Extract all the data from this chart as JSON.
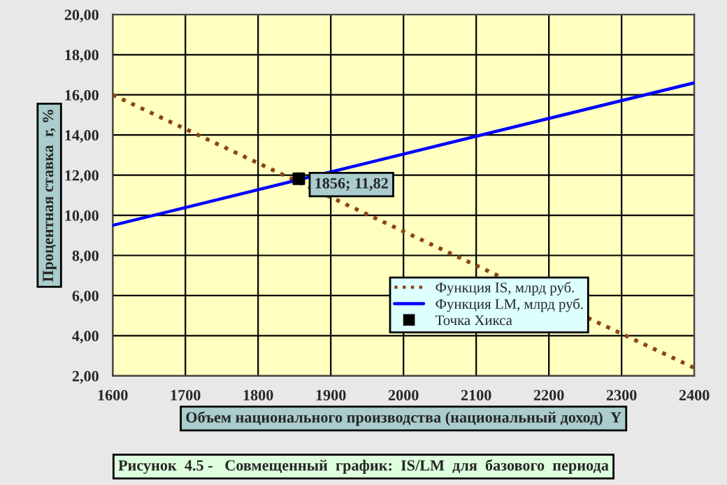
{
  "chart_data": {
    "type": "line",
    "xlabel": "Объем национального производства (национальный доход)  Y",
    "ylabel": "Процентная ставка  r, %",
    "series": [
      {
        "name": "Функция IS, млрд руб.",
        "color": "#8b4513",
        "line_style": "dotted",
        "x": [
          1600,
          2400
        ],
        "values": [
          16.0,
          2.4
        ]
      },
      {
        "name": "Функция LM, млрд руб.",
        "color": "#0000ff",
        "line_style": "solid",
        "x": [
          1600,
          2400
        ],
        "values": [
          9.5,
          16.6
        ]
      },
      {
        "name": "Точка Хикса",
        "type": "scatter",
        "color": "#000000",
        "marker": "square",
        "x": [
          1856
        ],
        "values": [
          11.82
        ]
      }
    ],
    "annotations": [
      {
        "text": "1856; 11,82",
        "x": 1856,
        "y": 11.82
      },
      "Рисунок  4.5 -   Совмещенный  график:  IS/LM  для  базового  периода"
    ],
    "xlim": [
      1600,
      2400
    ],
    "xticks": [
      1600,
      1700,
      1800,
      1900,
      2000,
      2100,
      2200,
      2300,
      2400
    ],
    "ylim": [
      2,
      20
    ],
    "yticks": [
      {
        "value": 2,
        "label": "2,00"
      },
      {
        "value": 4,
        "label": "4,00"
      },
      {
        "value": 6,
        "label": "6,00"
      },
      {
        "value": 8,
        "label": "8,00"
      },
      {
        "value": 10,
        "label": "10,00"
      },
      {
        "value": 12,
        "label": "12,00"
      },
      {
        "value": 14,
        "label": "14,00"
      },
      {
        "value": 16,
        "label": "16,00"
      },
      {
        "value": 18,
        "label": "18,00"
      },
      {
        "value": 20,
        "label": "20,00"
      }
    ],
    "grid": true,
    "legend": "bottom right"
  }
}
